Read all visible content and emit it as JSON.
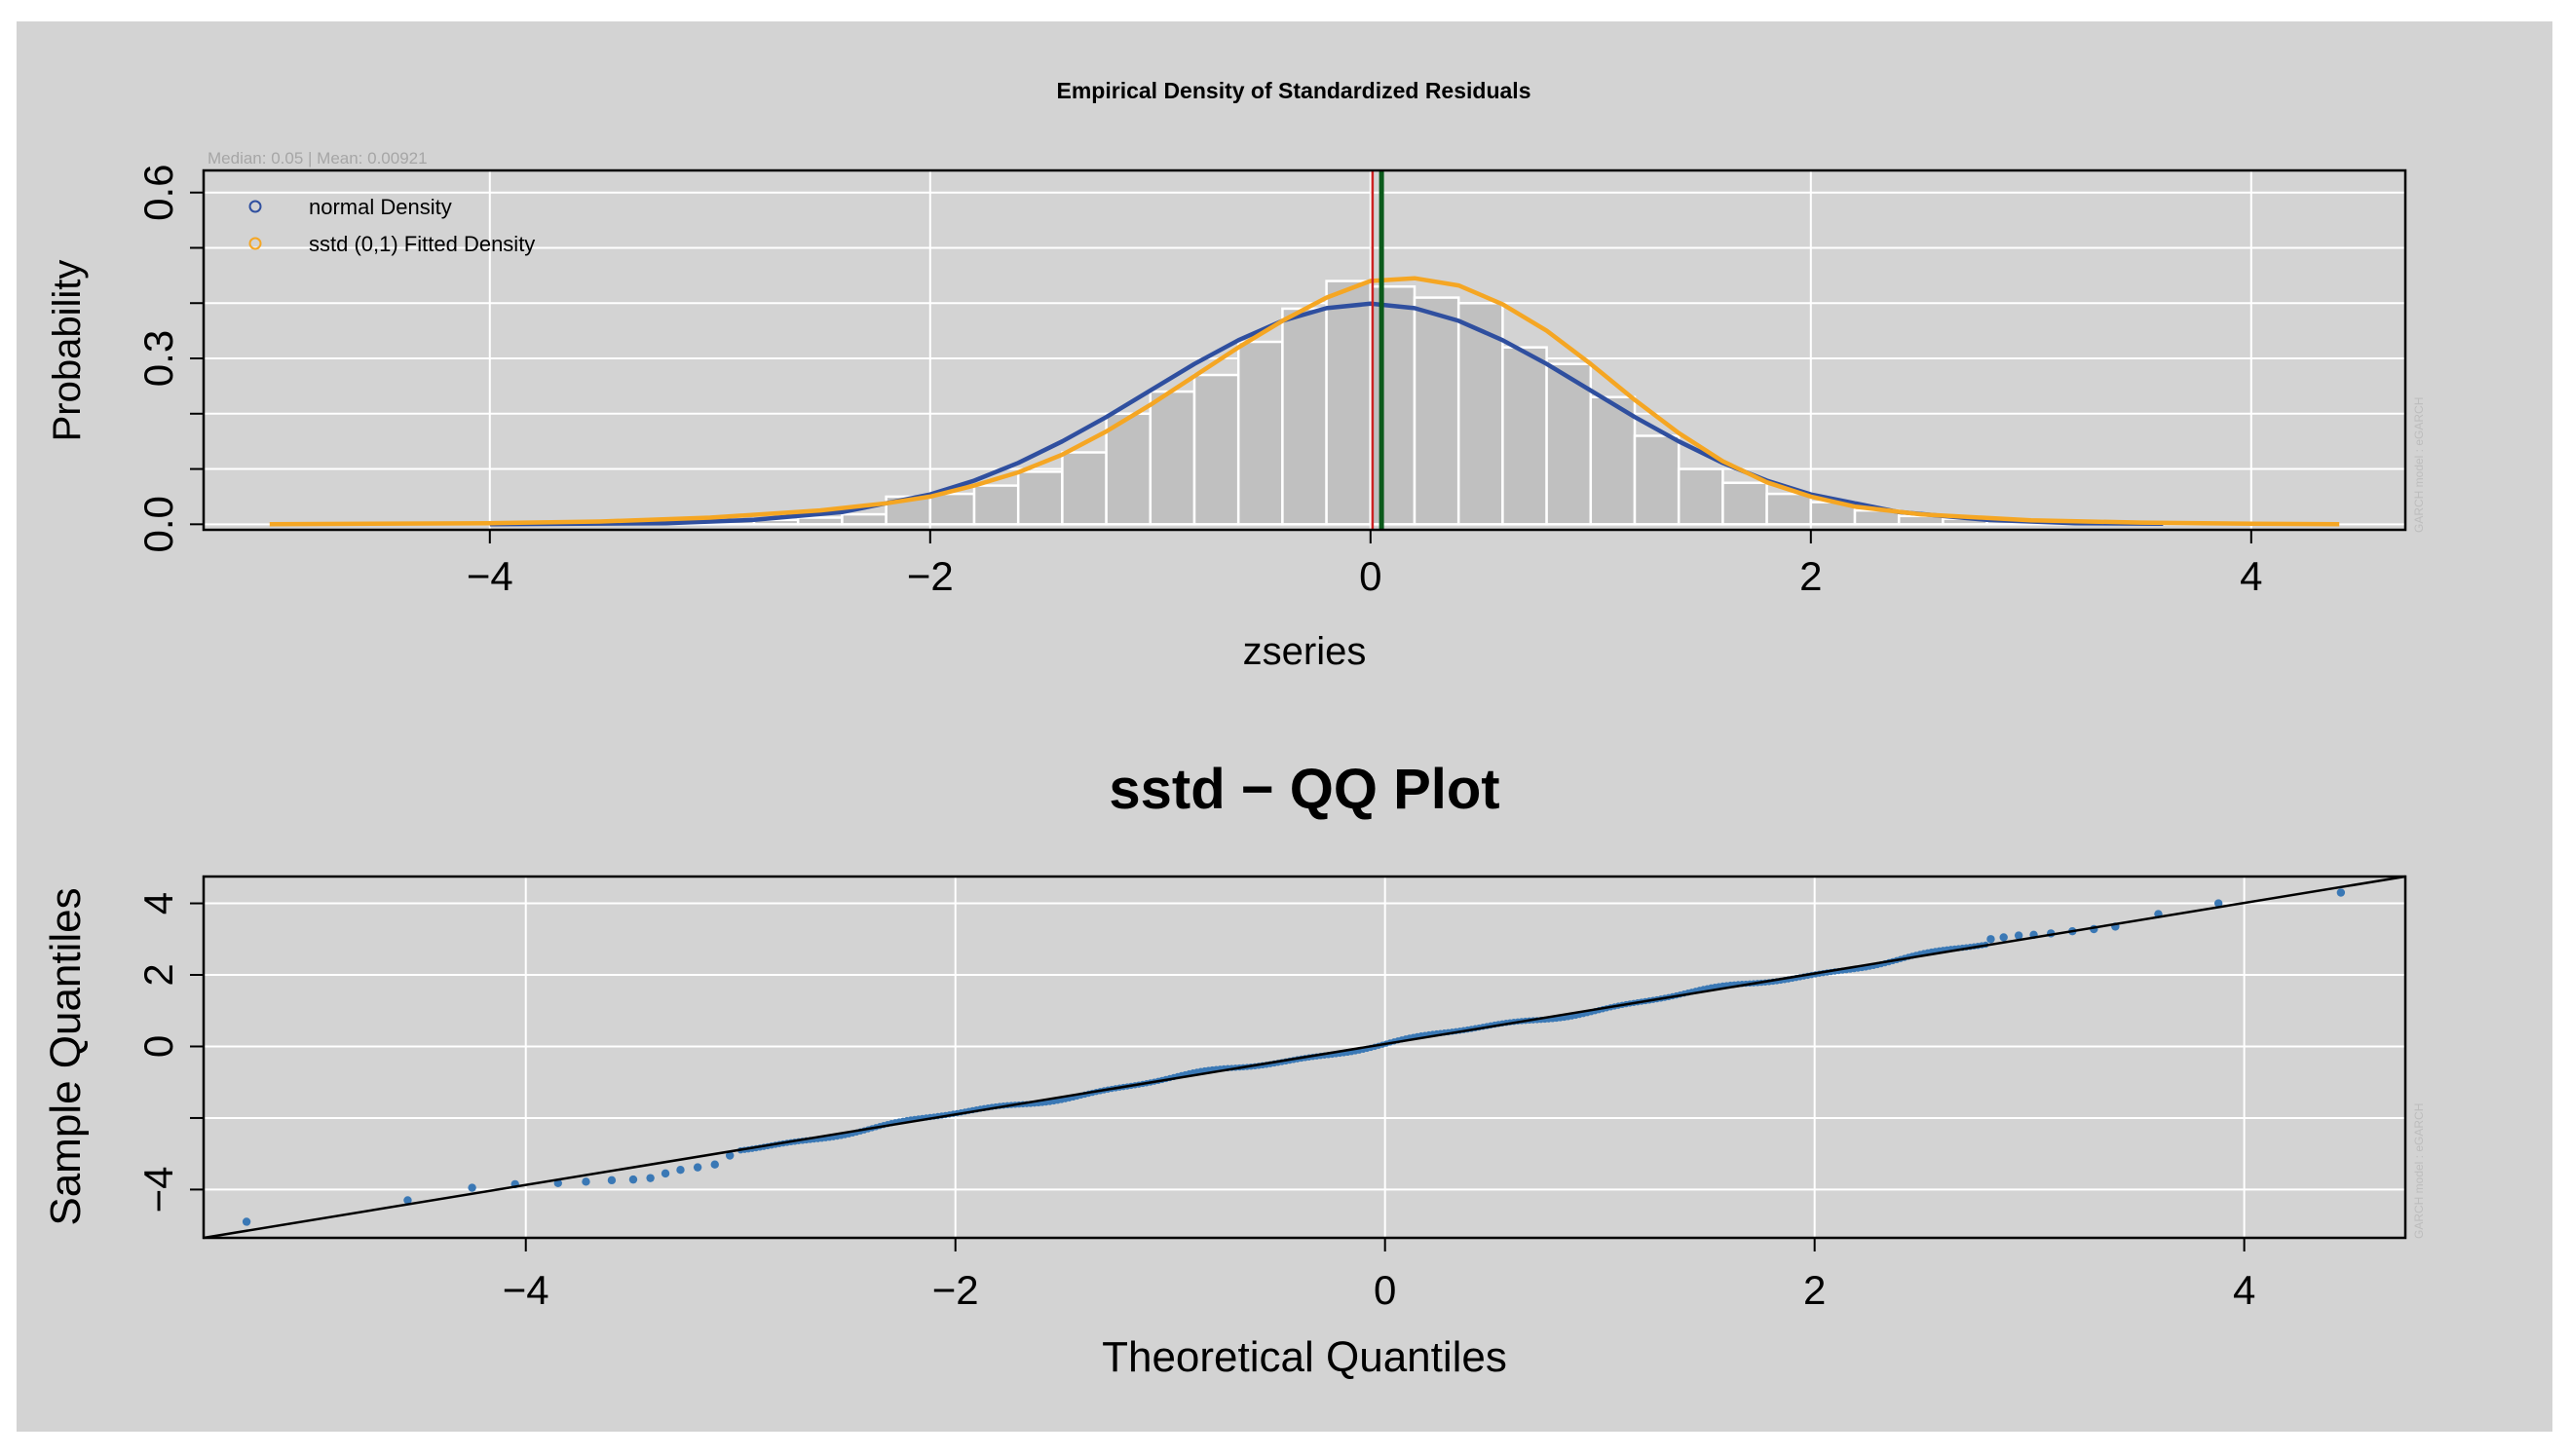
{
  "colors": {
    "background": "#d3d3d3",
    "grid": "#ffffff",
    "bars": "#c0c0c0",
    "bar_border": "#ffffff",
    "normal": "#2f4f9f",
    "sstd": "#f5a623",
    "median_line": "#cc2222",
    "mean_line": "#0b5a1b",
    "qq_points": "#3a78b5",
    "qq_line": "#000000",
    "axis": "#000000"
  },
  "chart_data": [
    {
      "type": "histogram",
      "title": "Empirical Density of Standardized Residuals",
      "subtitle": "Median:  0.05 | Mean:  0.00921",
      "median": 0.05,
      "mean": 0.00921,
      "xlabel": "zseries",
      "ylabel": "Probability",
      "xlim": [
        -5.3,
        4.7
      ],
      "ylim": [
        -0.01,
        0.64
      ],
      "x_ticks": [
        -4,
        -2,
        0,
        2,
        4
      ],
      "x_tick_labels": [
        "−4",
        "−2",
        "0",
        "2",
        "4"
      ],
      "y_ticks": [
        0.0,
        0.3,
        0.6
      ],
      "y_tick_labels": [
        "0.0",
        "0.3",
        "0.6"
      ],
      "grid": true,
      "watermark": "GARCH model : eGARCH",
      "legend": {
        "placement": "top-left",
        "entries": [
          "normal Density",
          "sstd (0,1) Fitted Density"
        ]
      },
      "bin_width": 0.2,
      "bins": [
        {
          "x0": -3.6,
          "density": 0.005
        },
        {
          "x0": -3.4,
          "density": 0.003
        },
        {
          "x0": -3.2,
          "density": 0.004
        },
        {
          "x0": -3.0,
          "density": 0.006
        },
        {
          "x0": -2.8,
          "density": 0.008
        },
        {
          "x0": -2.6,
          "density": 0.012
        },
        {
          "x0": -2.4,
          "density": 0.018
        },
        {
          "x0": -2.2,
          "density": 0.05
        },
        {
          "x0": -2.0,
          "density": 0.055
        },
        {
          "x0": -1.8,
          "density": 0.07
        },
        {
          "x0": -1.6,
          "density": 0.095
        },
        {
          "x0": -1.4,
          "density": 0.13
        },
        {
          "x0": -1.2,
          "density": 0.2
        },
        {
          "x0": -1.0,
          "density": 0.24
        },
        {
          "x0": -0.8,
          "density": 0.27
        },
        {
          "x0": -0.6,
          "density": 0.33
        },
        {
          "x0": -0.4,
          "density": 0.39
        },
        {
          "x0": -0.2,
          "density": 0.44
        },
        {
          "x0": 0.0,
          "density": 0.43
        },
        {
          "x0": 0.2,
          "density": 0.41
        },
        {
          "x0": 0.4,
          "density": 0.4
        },
        {
          "x0": 0.6,
          "density": 0.32
        },
        {
          "x0": 0.8,
          "density": 0.29
        },
        {
          "x0": 1.0,
          "density": 0.23
        },
        {
          "x0": 1.2,
          "density": 0.16
        },
        {
          "x0": 1.4,
          "density": 0.1
        },
        {
          "x0": 1.6,
          "density": 0.075
        },
        {
          "x0": 1.8,
          "density": 0.055
        },
        {
          "x0": 2.0,
          "density": 0.04
        },
        {
          "x0": 2.2,
          "density": 0.025
        },
        {
          "x0": 2.4,
          "density": 0.015
        },
        {
          "x0": 2.6,
          "density": 0.01
        },
        {
          "x0": 2.8,
          "density": 0.006
        },
        {
          "x0": 3.0,
          "density": 0.004
        },
        {
          "x0": 3.2,
          "density": 0.003
        },
        {
          "x0": 3.4,
          "density": 0.002
        }
      ],
      "series": [
        {
          "name": "normal Density",
          "x": [
            -4.0,
            -3.6,
            -3.2,
            -2.8,
            -2.4,
            -2.0,
            -1.8,
            -1.6,
            -1.4,
            -1.2,
            -1.0,
            -0.8,
            -0.6,
            -0.4,
            -0.2,
            0.0,
            0.2,
            0.4,
            0.6,
            0.8,
            1.0,
            1.2,
            1.4,
            1.6,
            1.8,
            2.0,
            2.4,
            2.8,
            3.2,
            3.6
          ],
          "y": [
            0.0,
            0.001,
            0.002,
            0.008,
            0.022,
            0.054,
            0.079,
            0.111,
            0.15,
            0.194,
            0.242,
            0.29,
            0.333,
            0.368,
            0.391,
            0.399,
            0.391,
            0.368,
            0.333,
            0.29,
            0.242,
            0.194,
            0.15,
            0.111,
            0.079,
            0.054,
            0.022,
            0.008,
            0.002,
            0.001
          ]
        },
        {
          "name": "sstd (0,1) Fitted Density",
          "x": [
            -5.0,
            -4.0,
            -3.5,
            -3.0,
            -2.5,
            -2.2,
            -2.0,
            -1.8,
            -1.6,
            -1.4,
            -1.2,
            -1.0,
            -0.8,
            -0.6,
            -0.4,
            -0.2,
            0.0,
            0.2,
            0.4,
            0.6,
            0.8,
            1.0,
            1.2,
            1.4,
            1.6,
            1.8,
            2.0,
            2.2,
            2.5,
            3.0,
            3.5,
            4.0,
            4.4
          ],
          "y": [
            0.0,
            0.002,
            0.005,
            0.012,
            0.025,
            0.038,
            0.05,
            0.07,
            0.094,
            0.126,
            0.168,
            0.216,
            0.268,
            0.32,
            0.368,
            0.41,
            0.44,
            0.445,
            0.432,
            0.398,
            0.35,
            0.29,
            0.225,
            0.165,
            0.114,
            0.076,
            0.05,
            0.032,
            0.018,
            0.007,
            0.003,
            0.001,
            0.0
          ]
        }
      ]
    },
    {
      "type": "scatter",
      "title": "sstd − QQ Plot",
      "xlabel": "Theoretical Quantiles",
      "ylabel": "Sample Quantiles",
      "xlim": [
        -5.5,
        4.75
      ],
      "ylim": [
        -5.35,
        4.75
      ],
      "x_ticks": [
        -4,
        -2,
        0,
        2,
        4
      ],
      "x_tick_labels": [
        "−4",
        "−2",
        "0",
        "2",
        "4"
      ],
      "y_ticks": [
        4,
        2,
        0,
        -4
      ],
      "y_tick_labels": [
        "4",
        "2",
        "0",
        "−4"
      ],
      "grid": true,
      "watermark": "GARCH model : eGARCH",
      "reference_line": {
        "x": [
          -5.5,
          4.75
        ],
        "y": [
          -5.35,
          4.75
        ]
      },
      "tail_points": {
        "x": [
          -5.3,
          -4.55,
          -4.25,
          -4.05,
          -3.85,
          -3.72,
          -3.6,
          -3.5,
          -3.42,
          -3.35,
          -3.28,
          -3.2,
          -3.12,
          -3.05,
          2.82,
          2.88,
          2.95,
          3.02,
          3.1,
          3.2,
          3.3,
          3.4,
          3.6,
          3.88,
          4.45
        ],
        "y": [
          -4.9,
          -4.3,
          -3.95,
          -3.85,
          -3.82,
          -3.78,
          -3.74,
          -3.72,
          -3.68,
          -3.55,
          -3.45,
          -3.38,
          -3.3,
          -3.05,
          3.0,
          3.05,
          3.1,
          3.12,
          3.16,
          3.22,
          3.28,
          3.35,
          3.7,
          4.0,
          4.3
        ]
      },
      "body_range": [
        -3.0,
        2.8
      ]
    }
  ]
}
